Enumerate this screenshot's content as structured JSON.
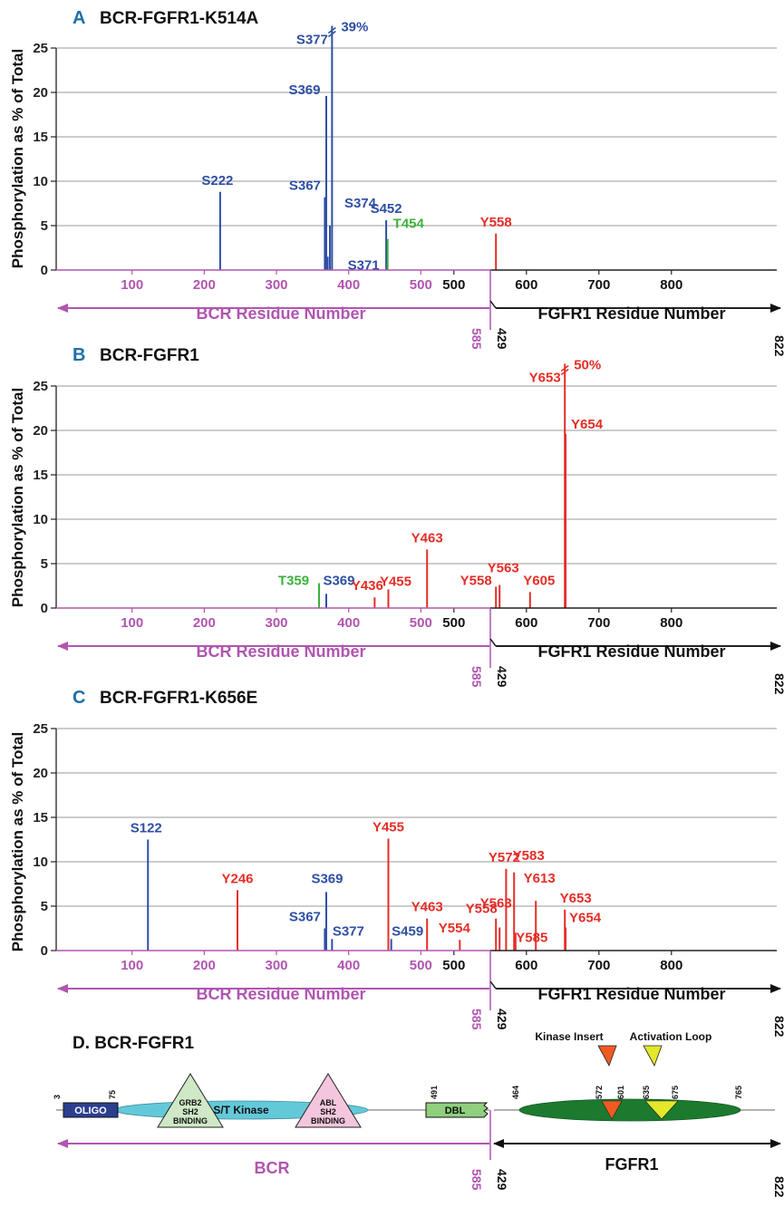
{
  "colors": {
    "S": "#2e4fa3",
    "T": "#3cb23c",
    "Y": "#e52d27",
    "bcr": "#b055b0",
    "fgfr": "#111111",
    "grid": "#9a9a9a",
    "letter": "#1f6fa8"
  },
  "ylabel": "Phosphorylation as % of Total",
  "bcr_axis_label": "BCR Residue Number",
  "fgfr_axis_label": "FGFR1 Residue Number",
  "bcr_ticks": [
    "100",
    "200",
    "300",
    "400",
    "500"
  ],
  "fgfr_ticks": [
    "500",
    "600",
    "700",
    "800"
  ],
  "breakpoint_bcr": "585",
  "breakpoint_fgfr": "429",
  "fgfr_end": "822",
  "chart_data": [
    {
      "type": "bar",
      "letter": "A",
      "title": "BCR-FGFR1-K514A",
      "ylabel": "Phosphorylation as % of Total",
      "ylim": [
        0,
        25
      ],
      "yticks": [
        "0",
        "5",
        "10",
        "15",
        "20",
        "25"
      ],
      "grid": true,
      "peaks": [
        {
          "site": "S222",
          "type": "S",
          "x": 222,
          "value": 8.8
        },
        {
          "site": "S367",
          "type": "S",
          "x": 367,
          "value": 8.2
        },
        {
          "site": "S369",
          "type": "S",
          "x": 369,
          "value": 19.6
        },
        {
          "site": "S371",
          "type": "S",
          "x": 371,
          "value": 1.5
        },
        {
          "site": "S374",
          "type": "S",
          "x": 374,
          "value": 5.0
        },
        {
          "site": "S377",
          "type": "S",
          "x": 377,
          "value": 39,
          "note": "39%"
        },
        {
          "site": "S452",
          "type": "S",
          "x": 452,
          "value": 5.6
        },
        {
          "site": "T454",
          "type": "T",
          "x": 454,
          "value": 3.5
        },
        {
          "site": "Y558",
          "type": "Y",
          "x": 558,
          "value": 4.1
        }
      ]
    },
    {
      "type": "bar",
      "letter": "B",
      "title": "BCR-FGFR1",
      "ylabel": "Phosphorylation as % of Total",
      "ylim": [
        0,
        25
      ],
      "yticks": [
        "0",
        "5",
        "10",
        "15",
        "20",
        "25"
      ],
      "grid": true,
      "peaks": [
        {
          "site": "T359",
          "type": "T",
          "x": 359,
          "value": 2.8
        },
        {
          "site": "S369",
          "type": "S",
          "x": 369,
          "value": 1.6
        },
        {
          "site": "Y436",
          "type": "Y",
          "x": 436,
          "value": 1.2
        },
        {
          "site": "Y455",
          "type": "Y",
          "x": 455,
          "value": 2.1
        },
        {
          "site": "Y463",
          "type": "Y",
          "x": 463,
          "value": 6.6
        },
        {
          "site": "Y558",
          "type": "Y",
          "x": 558,
          "value": 2.4
        },
        {
          "site": "Y563",
          "type": "Y",
          "x": 563,
          "value": 2.6
        },
        {
          "site": "Y605",
          "type": "Y",
          "x": 605,
          "value": 1.8
        },
        {
          "site": "Y653",
          "type": "Y",
          "x": 653,
          "value": 50,
          "note": "50%"
        },
        {
          "site": "Y654",
          "type": "Y",
          "x": 654,
          "value": 19.6
        }
      ]
    },
    {
      "type": "bar",
      "letter": "C",
      "title": "BCR-FGFR1-K656E",
      "ylabel": "Phosphorylation as % of Total",
      "ylim": [
        0,
        25
      ],
      "yticks": [
        "0",
        "5",
        "10",
        "15",
        "20",
        "25"
      ],
      "grid": true,
      "peaks": [
        {
          "site": "S122",
          "type": "S",
          "x": 122,
          "value": 12.5
        },
        {
          "site": "Y246",
          "type": "Y",
          "x": 246,
          "value": 6.8
        },
        {
          "site": "S367",
          "type": "S",
          "x": 367,
          "value": 2.5
        },
        {
          "site": "S369",
          "type": "S",
          "x": 369,
          "value": 6.6
        },
        {
          "site": "S377",
          "type": "S",
          "x": 377,
          "value": 1.3
        },
        {
          "site": "Y455",
          "type": "Y",
          "x": 455,
          "value": 12.6
        },
        {
          "site": "S459",
          "type": "S",
          "x": 459,
          "value": 1.3
        },
        {
          "site": "Y554",
          "type": "Y",
          "x": 554,
          "value": 1.2
        },
        {
          "site": "Y463",
          "type": "Y",
          "x": 463,
          "value": 3.6
        },
        {
          "site": "Y558",
          "type": "Y",
          "x": 558,
          "value": 3.6
        },
        {
          "site": "Y563",
          "type": "Y",
          "x": 563,
          "value": 2.6
        },
        {
          "site": "Y572",
          "type": "Y",
          "x": 572,
          "value": 9.2
        },
        {
          "site": "Y583",
          "type": "Y",
          "x": 583,
          "value": 8.8
        },
        {
          "site": "Y585",
          "type": "Y",
          "x": 585,
          "value": 2.0
        },
        {
          "site": "Y613",
          "type": "Y",
          "x": 613,
          "value": 5.6
        },
        {
          "site": "Y653",
          "type": "Y",
          "x": 653,
          "value": 4.6
        },
        {
          "site": "Y654",
          "type": "Y",
          "x": 654,
          "value": 2.6
        }
      ]
    }
  ],
  "domain_map": {
    "title": "D. BCR-FGFR1",
    "bcr_label": "BCR",
    "fgfr_label": "FGFR1",
    "breakpoint_bcr": "585",
    "breakpoint_fgfr": "429",
    "end": "822",
    "kinase_insert": "Kinase Insert",
    "activation_loop": "Activation Loop",
    "oligo": "OLIGO",
    "st_kinase": "S/T Kinase",
    "grb2_line1": "GRB2",
    "grb2_line2": "SH2",
    "grb2_line3": "BINDING",
    "abl_line1": "ABL",
    "abl_line2": "SH2",
    "abl_line3": "BINDING",
    "dbl": "DBL",
    "pos_labels": [
      "3",
      "75",
      "491",
      "464",
      "572",
      "601",
      "635",
      "675",
      "765"
    ]
  }
}
